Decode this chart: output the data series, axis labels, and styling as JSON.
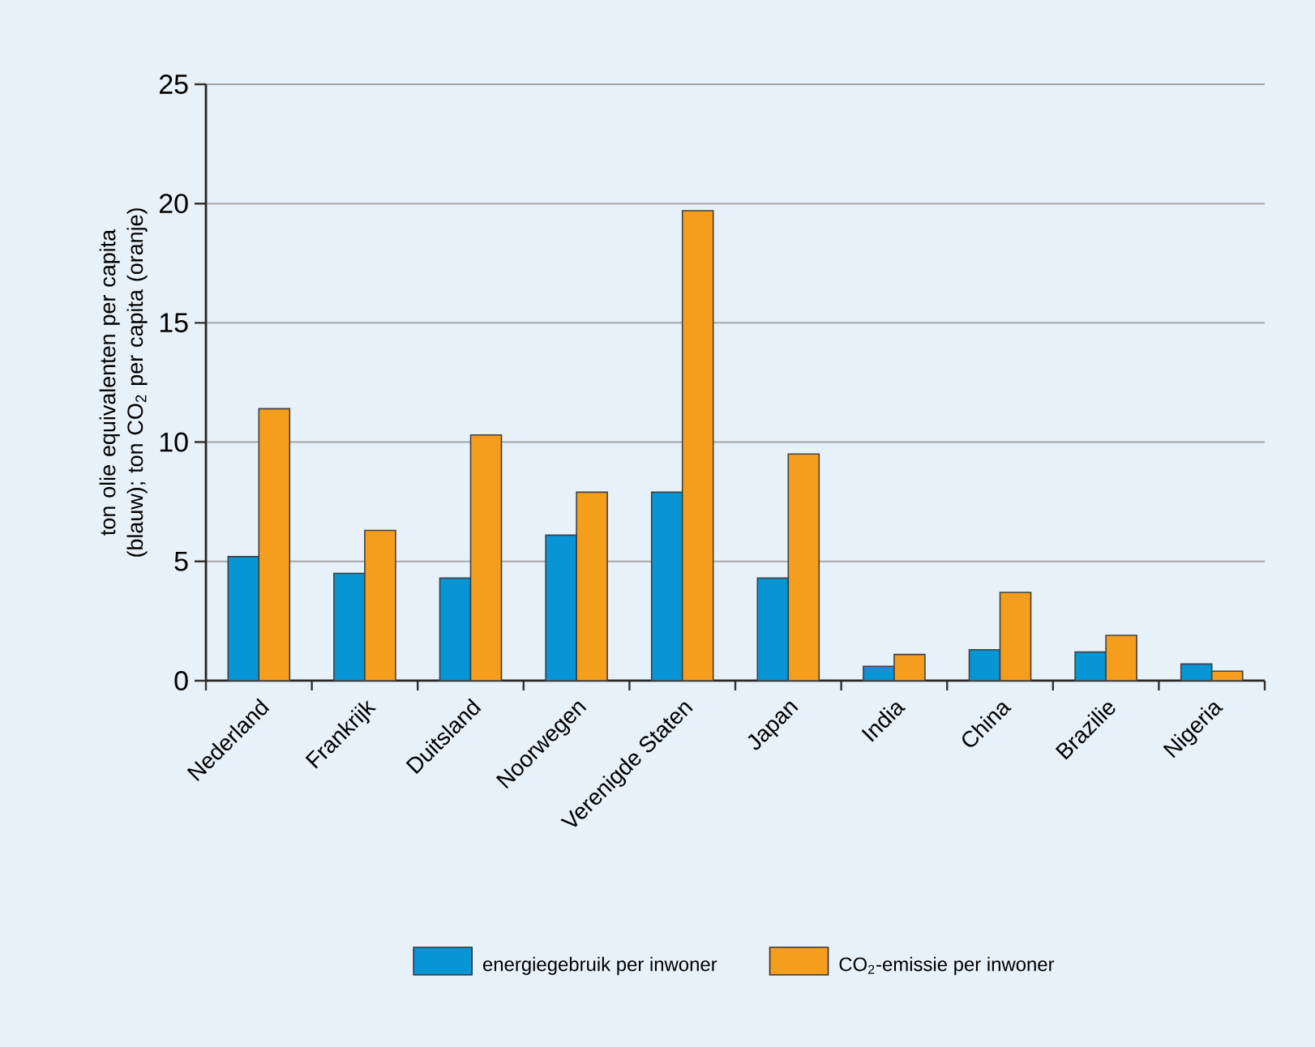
{
  "chart_data": {
    "type": "bar",
    "ylabel": "ton olie equivalenten per capita (blauw); ton CO$_{2}$ per capita (oranje)",
    "categories": [
      "Nederland",
      "Frankrijk",
      "Duitsland",
      "Noorwegen",
      "Verenigde Staten",
      "Japan",
      "India",
      "China",
      "Brazilie",
      "Nigeria"
    ],
    "series": [
      {
        "name": "energiegebruik per inwoner",
        "color": "#0795d6",
        "values": [
          5.2,
          4.5,
          4.3,
          6.1,
          7.9,
          4.3,
          0.6,
          1.3,
          1.2,
          0.7
        ]
      },
      {
        "name": "CO$_{2}$-emissie per inwoner",
        "color": "#f59e1e",
        "values": [
          11.4,
          6.3,
          10.3,
          7.9,
          19.7,
          9.5,
          1.1,
          3.7,
          1.9,
          0.4
        ]
      }
    ],
    "ylim": [
      0,
      25
    ],
    "yticks": [
      0,
      5,
      10,
      15,
      20,
      25
    ],
    "grid": "y",
    "legend": "bottom"
  }
}
